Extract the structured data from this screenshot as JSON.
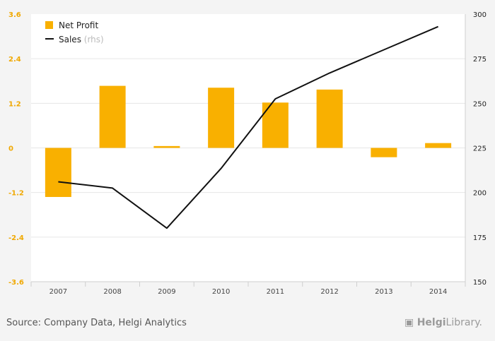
{
  "chart_data": {
    "type": "bar",
    "categories": [
      "2007",
      "2008",
      "2009",
      "2010",
      "2011",
      "2012",
      "2013",
      "2014"
    ],
    "series": [
      {
        "name": "Net Profit",
        "type": "bar",
        "axis": "left",
        "color": "#f9b000",
        "values": [
          -1.32,
          1.67,
          0.05,
          1.62,
          1.22,
          1.57,
          -0.25,
          0.13
        ]
      },
      {
        "name": "Sales",
        "name_suffix": "(rhs)",
        "type": "line",
        "axis": "right",
        "color": "#111111",
        "values": [
          206,
          202.5,
          180,
          213.5,
          252.5,
          267,
          280,
          293
        ]
      }
    ],
    "y_left": {
      "min": -3.6,
      "max": 3.6,
      "ticks": [
        "3.6",
        "2.4",
        "1.2",
        "0",
        "-1.2",
        "-2.4",
        "-3.6"
      ],
      "tick_color": "#f0a800"
    },
    "y_right": {
      "min": 150,
      "max": 300,
      "ticks": [
        "300",
        "275",
        "250",
        "225",
        "200",
        "175",
        "150"
      ]
    },
    "grid": true,
    "legend_position": "top-left"
  },
  "footer": {
    "source": "Source: Company Data, Helgi Analytics",
    "brand_bold": "Helgi",
    "brand_rest": "Library."
  }
}
